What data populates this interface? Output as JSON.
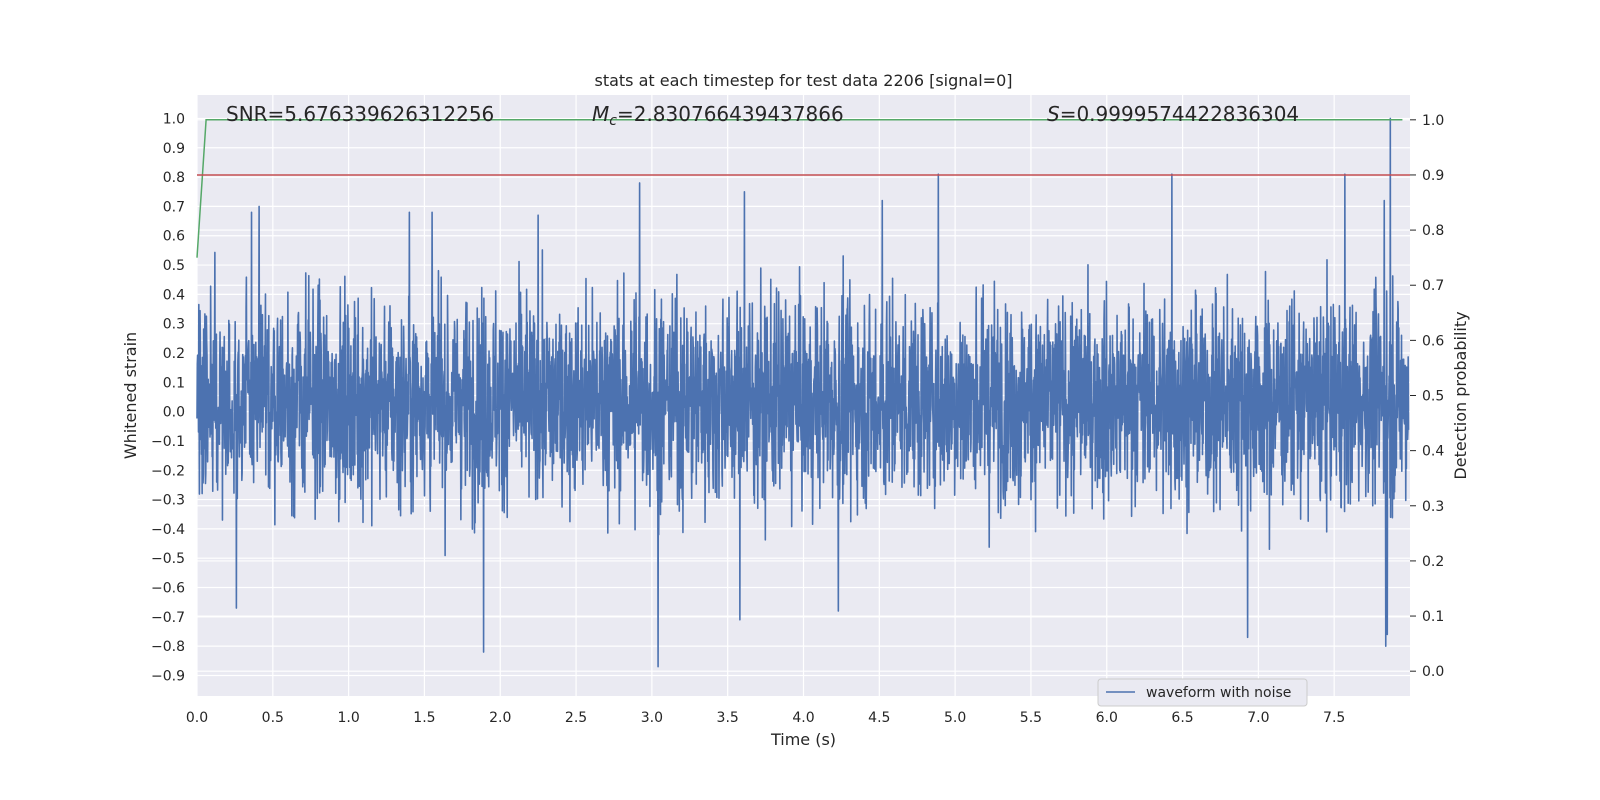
{
  "chart_data": {
    "type": "line",
    "title": "stats at each timestep for test data 2206 [signal=0]",
    "xlabel": "Time (s)",
    "ylabel": "Whitened strain",
    "y2label": "Detection probability",
    "xlim": [
      0.0,
      8.0
    ],
    "ylim": [
      -0.97,
      1.08
    ],
    "y2lim": [
      -0.045,
      1.045
    ],
    "xticks": [
      "0.0",
      "0.5",
      "1.0",
      "1.5",
      "2.0",
      "2.5",
      "3.0",
      "3.5",
      "4.0",
      "4.5",
      "5.0",
      "5.5",
      "6.0",
      "6.5",
      "7.0",
      "7.5"
    ],
    "xtick_values": [
      0.0,
      0.5,
      1.0,
      1.5,
      2.0,
      2.5,
      3.0,
      3.5,
      4.0,
      4.5,
      5.0,
      5.5,
      6.0,
      6.5,
      7.0,
      7.5
    ],
    "yticks": [
      "1.0",
      "0.9",
      "0.8",
      "0.7",
      "0.6",
      "0.5",
      "0.4",
      "0.3",
      "0.2",
      "0.1",
      "0.0",
      "−0.1",
      "−0.2",
      "−0.3",
      "−0.4",
      "−0.5",
      "−0.6",
      "−0.7",
      "−0.8",
      "−0.9"
    ],
    "ytick_values": [
      1.0,
      0.9,
      0.8,
      0.7,
      0.6,
      0.5,
      0.4,
      0.3,
      0.2,
      0.1,
      0.0,
      -0.1,
      -0.2,
      -0.3,
      -0.4,
      -0.5,
      -0.6,
      -0.7,
      -0.8,
      -0.9
    ],
    "y2ticks": [
      "1.0",
      "0.9",
      "0.8",
      "0.7",
      "0.6",
      "0.5",
      "0.4",
      "0.3",
      "0.2",
      "0.1",
      "0.0"
    ],
    "y2tick_values": [
      1.0,
      0.9,
      0.8,
      0.7,
      0.6,
      0.5,
      0.4,
      0.3,
      0.2,
      0.1,
      0.0
    ],
    "annotations": {
      "snr": "SNR=5.676339626312256",
      "mc_symbol": "M",
      "mc_subscript": "c",
      "mc_value": "=2.830766439437866",
      "s_symbol": "S",
      "s_value": "=0.9999574422836304"
    },
    "series": [
      {
        "name": "waveform with noise",
        "color": "#4c72b0",
        "axis": "left",
        "x_range": [
          0.0,
          7.99
        ],
        "typical_band": [
          -0.3,
          0.38
        ],
        "peaks": [
          {
            "x": 2.92,
            "y": 0.78
          },
          {
            "x": 3.61,
            "y": 0.75
          },
          {
            "x": 4.89,
            "y": 0.81
          },
          {
            "x": 6.43,
            "y": 0.81
          },
          {
            "x": 7.57,
            "y": 0.81
          },
          {
            "x": 7.87,
            "y": 1.0
          },
          {
            "x": 0.41,
            "y": 0.7
          },
          {
            "x": 0.36,
            "y": 0.68
          },
          {
            "x": 1.4,
            "y": 0.68
          },
          {
            "x": 1.55,
            "y": 0.68
          },
          {
            "x": 2.25,
            "y": 0.67
          },
          {
            "x": 4.52,
            "y": 0.72
          },
          {
            "x": 7.83,
            "y": 0.72
          }
        ],
        "troughs": [
          {
            "x": 1.89,
            "y": -0.82
          },
          {
            "x": 3.04,
            "y": -0.87
          },
          {
            "x": 3.58,
            "y": -0.71
          },
          {
            "x": 0.26,
            "y": -0.67
          },
          {
            "x": 4.23,
            "y": -0.68
          },
          {
            "x": 6.93,
            "y": -0.77
          },
          {
            "x": 7.84,
            "y": -0.8
          },
          {
            "x": 7.85,
            "y": -0.76
          }
        ]
      },
      {
        "name": "",
        "color": "#55a868",
        "axis": "right",
        "x": [
          0.0,
          0.06,
          0.1,
          7.95
        ],
        "y": [
          0.75,
          1.0,
          1.0,
          1.0
        ]
      },
      {
        "name": "",
        "color": "#c44e52",
        "axis": "right",
        "x": [
          0.0,
          8.0
        ],
        "y": [
          0.9,
          0.9
        ]
      }
    ],
    "legend": {
      "placement": "lower-right",
      "entries": [
        "waveform with noise"
      ]
    },
    "grid": true
  }
}
